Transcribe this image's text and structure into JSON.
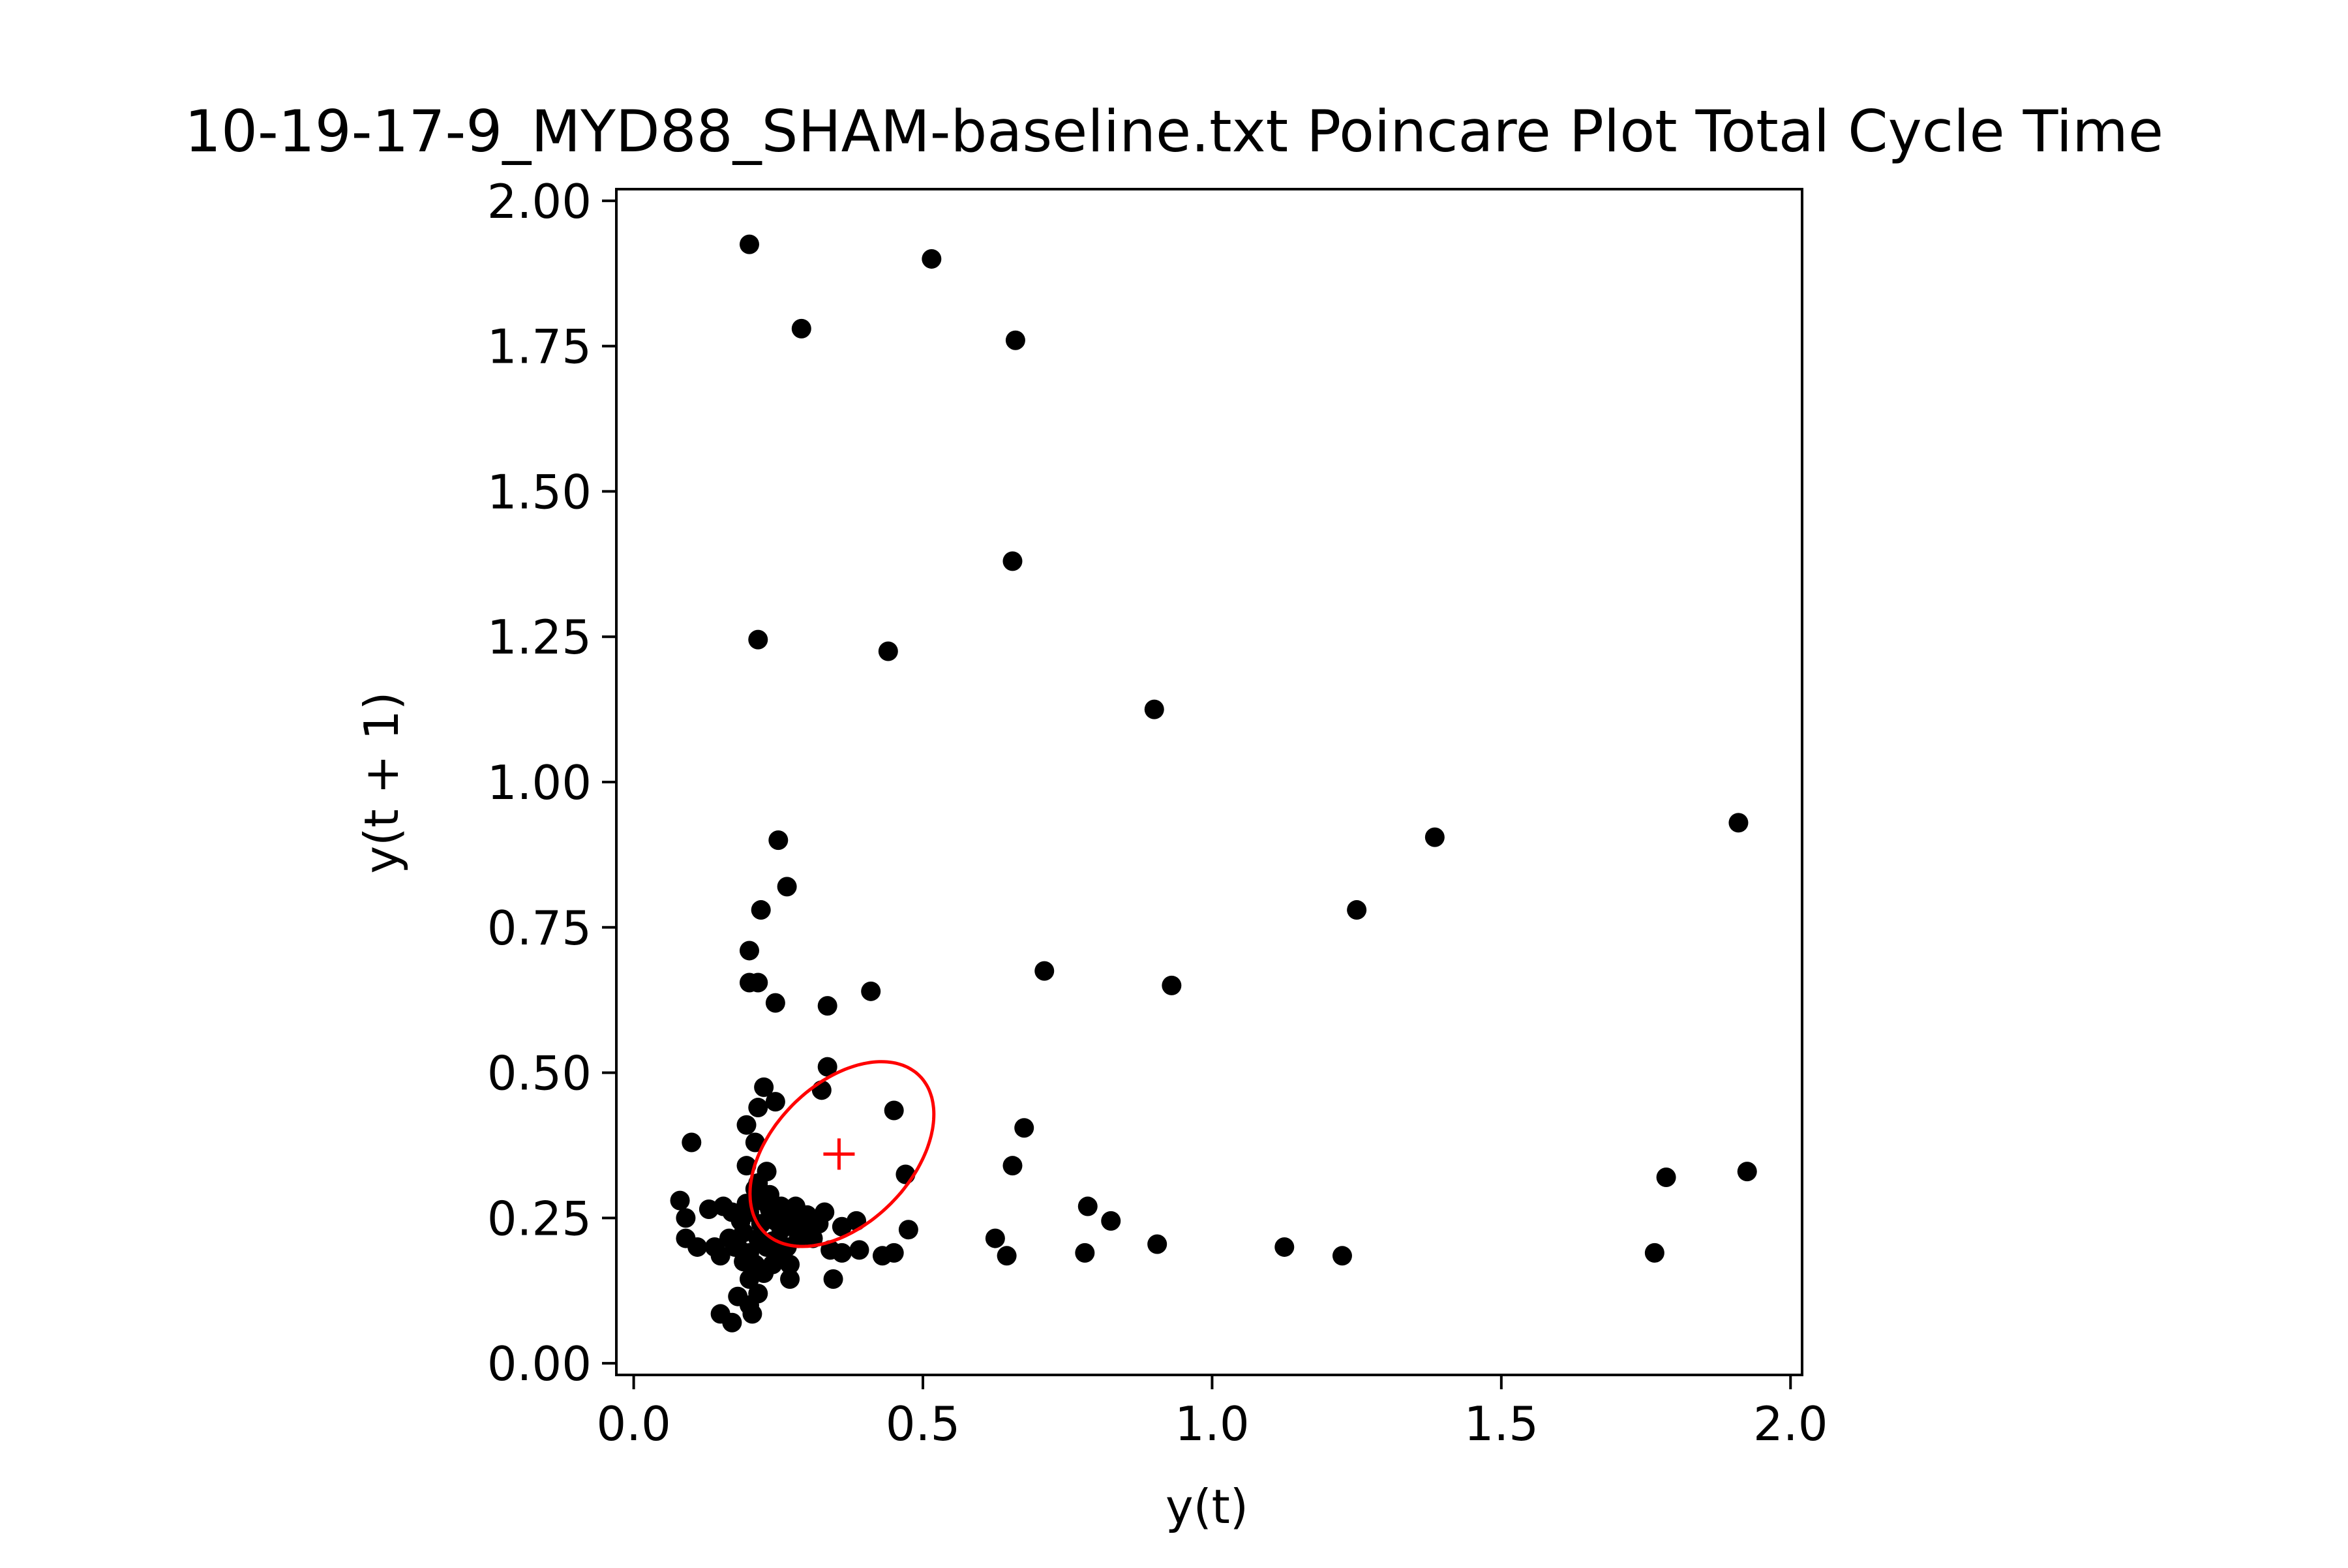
{
  "chart_data": {
    "type": "scatter",
    "title": "10-19-17-9_MYD88_SHAM-baseline.txt Poincare Plot Total Cycle Time",
    "xlabel": "y(t)",
    "ylabel": "y(t + 1)",
    "xlim": [
      -0.03,
      2.02
    ],
    "ylim": [
      -0.02,
      2.02
    ],
    "xticks": [
      "0.0",
      "0.5",
      "1.0",
      "1.5",
      "2.0"
    ],
    "xtick_values": [
      0.0,
      0.5,
      1.0,
      1.5,
      2.0
    ],
    "yticks": [
      "0.00",
      "0.25",
      "0.50",
      "0.75",
      "1.00",
      "1.25",
      "1.50",
      "1.75",
      "2.00"
    ],
    "ytick_values": [
      0.0,
      0.25,
      0.5,
      0.75,
      1.0,
      1.25,
      1.5,
      1.75,
      2.0
    ],
    "grid": false,
    "marker_color": "#000000",
    "ellipse_color": "#ff0000",
    "centroid": [
      0.355,
      0.36
    ],
    "ellipse": {
      "center": [
        0.36,
        0.36
      ],
      "semi_axis_major": 0.19,
      "semi_axis_minor": 0.12,
      "angle_deg": 45
    },
    "points": [
      [
        0.2,
        1.925
      ],
      [
        0.515,
        1.9
      ],
      [
        0.29,
        1.78
      ],
      [
        0.66,
        1.76
      ],
      [
        0.655,
        1.38
      ],
      [
        0.215,
        1.245
      ],
      [
        0.44,
        1.225
      ],
      [
        0.9,
        1.125
      ],
      [
        0.25,
        0.9
      ],
      [
        1.385,
        0.905
      ],
      [
        1.91,
        0.93
      ],
      [
        0.265,
        0.82
      ],
      [
        0.22,
        0.78
      ],
      [
        1.25,
        0.78
      ],
      [
        0.2,
        0.71
      ],
      [
        0.71,
        0.675
      ],
      [
        0.2,
        0.655
      ],
      [
        0.215,
        0.655
      ],
      [
        0.93,
        0.65
      ],
      [
        0.41,
        0.64
      ],
      [
        0.245,
        0.62
      ],
      [
        0.335,
        0.615
      ],
      [
        0.335,
        0.51
      ],
      [
        0.225,
        0.475
      ],
      [
        0.325,
        0.47
      ],
      [
        0.215,
        0.44
      ],
      [
        0.245,
        0.45
      ],
      [
        0.45,
        0.435
      ],
      [
        0.195,
        0.41
      ],
      [
        0.675,
        0.405
      ],
      [
        0.1,
        0.38
      ],
      [
        0.21,
        0.38
      ],
      [
        0.195,
        0.34
      ],
      [
        0.655,
        0.34
      ],
      [
        0.47,
        0.325
      ],
      [
        1.785,
        0.32
      ],
      [
        1.925,
        0.33
      ],
      [
        0.08,
        0.28
      ],
      [
        0.785,
        0.27
      ],
      [
        0.09,
        0.25
      ],
      [
        0.825,
        0.245
      ],
      [
        0.385,
        0.245
      ],
      [
        0.36,
        0.235
      ],
      [
        0.475,
        0.23
      ],
      [
        0.09,
        0.215
      ],
      [
        0.11,
        0.2
      ],
      [
        0.625,
        0.215
      ],
      [
        0.905,
        0.205
      ],
      [
        1.125,
        0.2
      ],
      [
        0.78,
        0.19
      ],
      [
        0.645,
        0.185
      ],
      [
        1.225,
        0.185
      ],
      [
        1.765,
        0.19
      ],
      [
        0.43,
        0.185
      ],
      [
        0.45,
        0.19
      ],
      [
        0.39,
        0.195
      ],
      [
        0.36,
        0.19
      ],
      [
        0.34,
        0.195
      ],
      [
        0.345,
        0.145
      ],
      [
        0.27,
        0.145
      ],
      [
        0.15,
        0.085
      ],
      [
        0.17,
        0.07
      ],
      [
        0.205,
        0.085
      ],
      [
        0.2,
        0.1
      ],
      [
        0.215,
        0.12
      ],
      [
        0.18,
        0.115
      ],
      [
        0.13,
        0.265
      ],
      [
        0.14,
        0.2
      ],
      [
        0.15,
        0.185
      ],
      [
        0.17,
        0.26
      ],
      [
        0.175,
        0.2
      ],
      [
        0.185,
        0.245
      ],
      [
        0.19,
        0.225
      ],
      [
        0.2,
        0.19
      ],
      [
        0.2,
        0.26
      ],
      [
        0.21,
        0.3
      ],
      [
        0.21,
        0.17
      ],
      [
        0.215,
        0.215
      ],
      [
        0.22,
        0.24
      ],
      [
        0.22,
        0.28
      ],
      [
        0.225,
        0.155
      ],
      [
        0.23,
        0.2
      ],
      [
        0.235,
        0.265
      ],
      [
        0.235,
        0.29
      ],
      [
        0.24,
        0.21
      ],
      [
        0.245,
        0.245
      ],
      [
        0.25,
        0.185
      ],
      [
        0.255,
        0.23
      ],
      [
        0.26,
        0.26
      ],
      [
        0.265,
        0.2
      ],
      [
        0.275,
        0.235
      ],
      [
        0.28,
        0.27
      ],
      [
        0.285,
        0.215
      ],
      [
        0.3,
        0.255
      ],
      [
        0.31,
        0.215
      ],
      [
        0.32,
        0.24
      ],
      [
        0.33,
        0.26
      ],
      [
        0.155,
        0.27
      ],
      [
        0.165,
        0.215
      ],
      [
        0.19,
        0.175
      ],
      [
        0.2,
        0.145
      ],
      [
        0.215,
        0.31
      ],
      [
        0.23,
        0.33
      ],
      [
        0.24,
        0.17
      ],
      [
        0.18,
        0.2
      ],
      [
        0.27,
        0.17
      ],
      [
        0.29,
        0.25
      ],
      [
        0.3,
        0.23
      ],
      [
        0.255,
        0.27
      ],
      [
        0.195,
        0.275
      ]
    ]
  }
}
